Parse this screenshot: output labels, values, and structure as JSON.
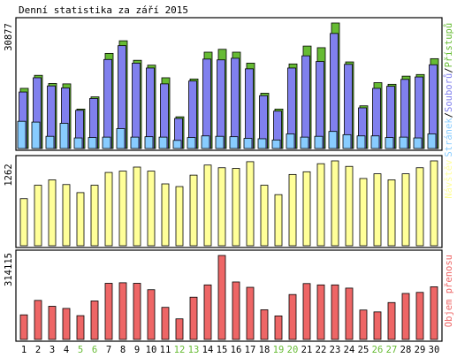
{
  "colors": {
    "background": "#ffffff",
    "panel_border": "#000000",
    "hits": "#66bb33",
    "files": "#8080ee",
    "pages": "#88ccff",
    "visits": "#ffff99",
    "kbytes": "#ee6666",
    "weekday_label": "#000000",
    "weekend_label": "#66bb33"
  },
  "chart_data": {
    "type": "bar",
    "title": "Denní statistika za září 2015",
    "categories": [
      "1",
      "2",
      "3",
      "4",
      "5",
      "6",
      "7",
      "8",
      "9",
      "10",
      "11",
      "12",
      "13",
      "14",
      "15",
      "16",
      "17",
      "18",
      "19",
      "20",
      "21",
      "22",
      "23",
      "24",
      "25",
      "26",
      "27",
      "28",
      "29",
      "30"
    ],
    "weekend_days": [
      "5",
      "6",
      "12",
      "13",
      "19",
      "20",
      "26",
      "27"
    ],
    "panels": [
      {
        "name": "requests",
        "ymax_label": "30877",
        "ylim": [
          0,
          30877
        ],
        "legend": [
          {
            "text": "Stránek",
            "color": "#88ccff"
          },
          {
            "text": "/",
            "color": "#000000"
          },
          {
            "text": "Souborů",
            "color": "#8080ee"
          },
          {
            "text": "/",
            "color": "#000000"
          },
          {
            "text": "Přístupů",
            "color": "#66bb33"
          }
        ],
        "series": [
          {
            "name": "Přístupů",
            "values": [
              14800,
              18000,
              16000,
              15900,
              9700,
              12700,
              23400,
              26500,
              21700,
              20500,
              17400,
              7800,
              17100,
              23700,
              24400,
              23700,
              21000,
              13600,
              9700,
              20800,
              25200,
              24800,
              30877,
              21300,
              10500,
              16200,
              15800,
              17800,
              18200,
              22100
            ]
          },
          {
            "name": "Souborů",
            "values": [
              13900,
              17400,
              15400,
              14900,
              9400,
              12300,
              21900,
              25300,
              21000,
              19800,
              15900,
              7400,
              16600,
              22000,
              21800,
              22200,
              19600,
              13000,
              9200,
              19800,
              22800,
              21400,
              28300,
              20700,
              10000,
              14800,
              15300,
              17000,
              17600,
              20600
            ]
          },
          {
            "name": "Stránek",
            "values": [
              6700,
              6500,
              3000,
              6200,
              2600,
              2700,
              2800,
              4900,
              2800,
              2900,
              2800,
              2000,
              2700,
              3100,
              3000,
              2900,
              2500,
              2400,
              2100,
              3600,
              2800,
              3000,
              4200,
              3400,
              3100,
              3100,
              2700,
              2800,
              2600,
              3600
            ]
          }
        ]
      },
      {
        "name": "visits",
        "ymax_label": "1262",
        "ylim": [
          0,
          1262
        ],
        "legend": [
          {
            "text": "Návštěv",
            "color": "#ffff99"
          }
        ],
        "series": [
          {
            "name": "Návštěv",
            "values": [
              700,
              900,
              980,
              910,
              790,
              900,
              1090,
              1110,
              1170,
              1110,
              920,
              880,
              1050,
              1200,
              1160,
              1150,
              1250,
              900,
              760,
              1060,
              1100,
              1220,
              1262,
              1180,
              1000,
              1070,
              980,
              1070,
              1160,
              1262
            ]
          }
        ]
      },
      {
        "name": "kbytes",
        "ymax_label": "314115",
        "ylim": [
          0,
          314115
        ],
        "legend": [
          {
            "text": "Objem přenosu",
            "color": "#ee6666"
          }
        ],
        "series": [
          {
            "name": "Objem přenosu",
            "values": [
              92000,
              146000,
              124000,
              116000,
              89000,
              144000,
              210000,
              212000,
              210000,
              186000,
              120000,
              77000,
              158000,
              204000,
              314115,
              215000,
              195000,
              111000,
              88000,
              168000,
              209000,
              204000,
              204000,
              192000,
              110000,
              103000,
              138000,
              172000,
              176000,
              197000
            ]
          }
        ]
      }
    ]
  }
}
